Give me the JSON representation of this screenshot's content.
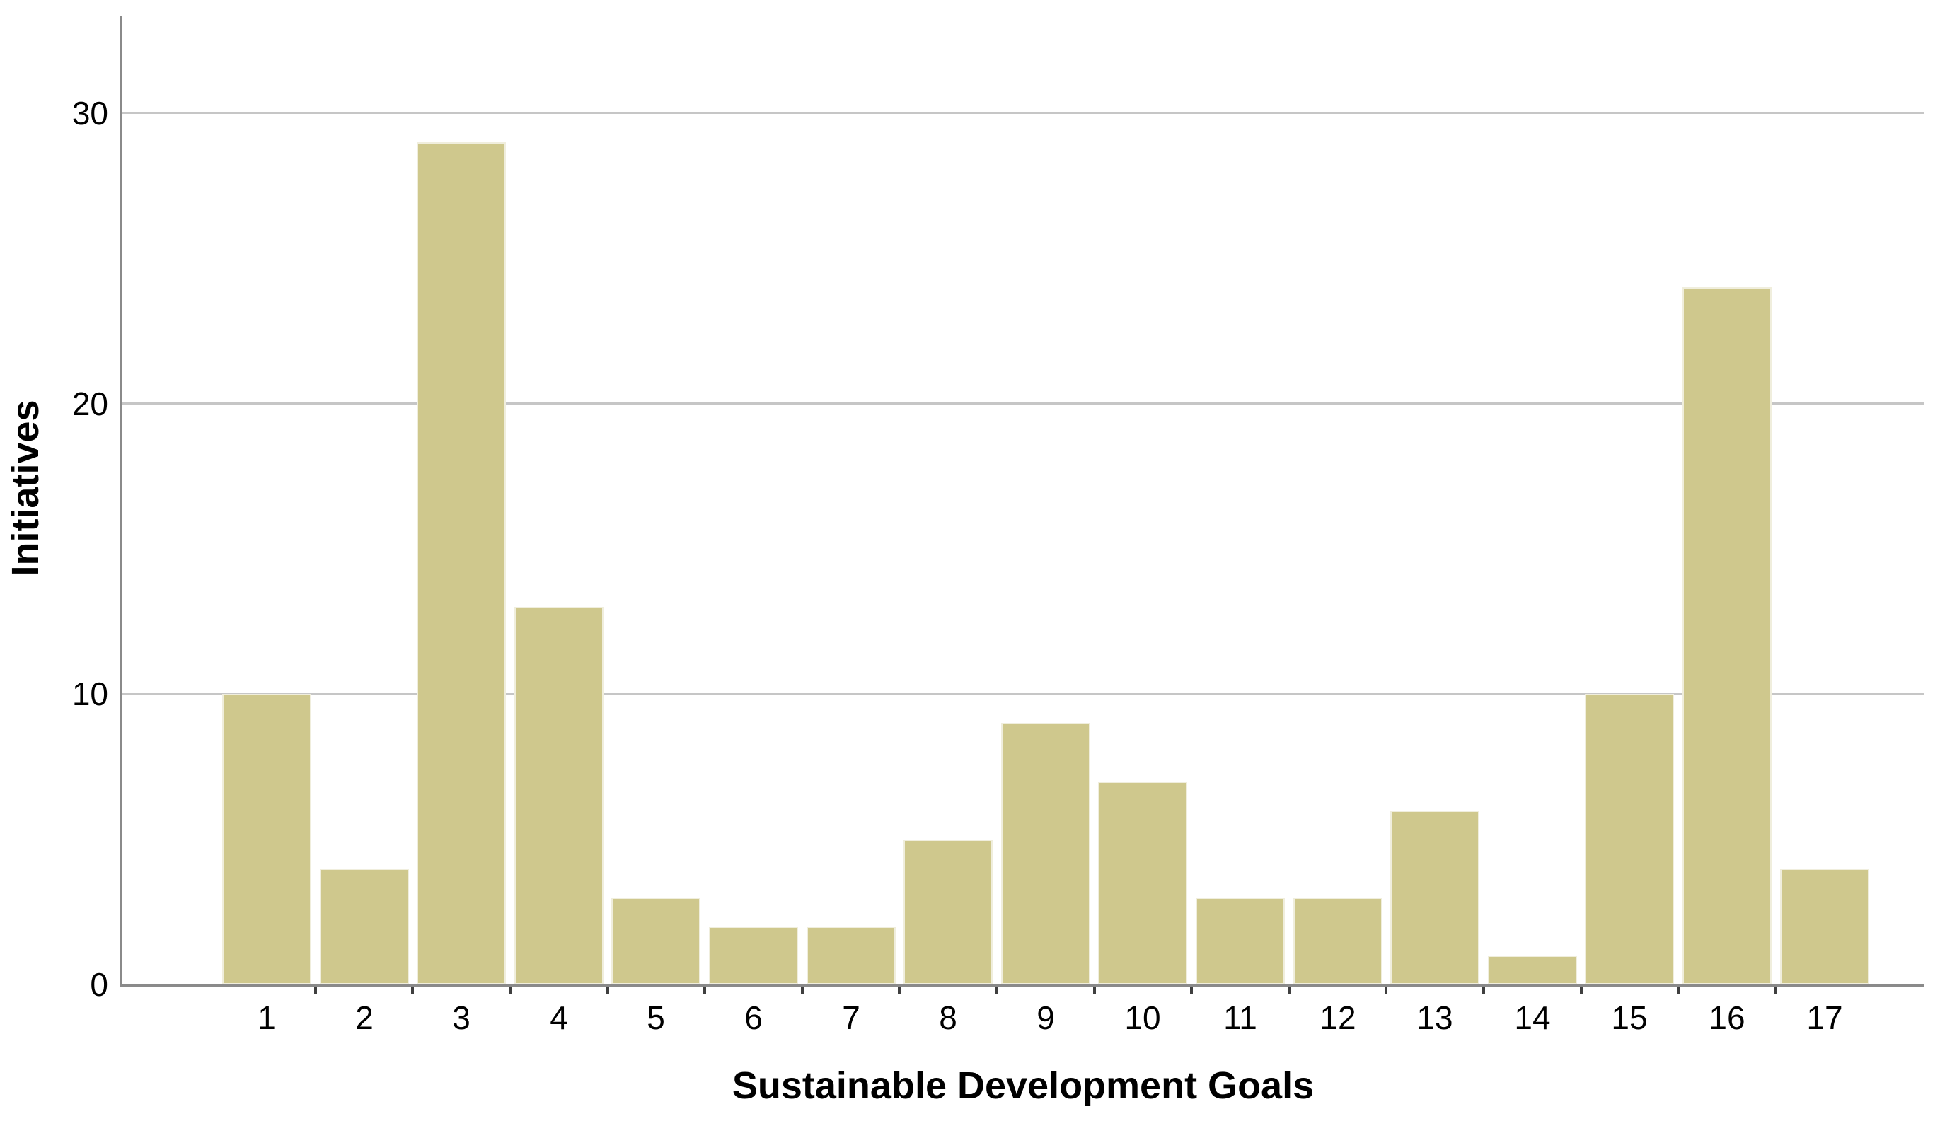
{
  "chart_data": {
    "type": "bar",
    "title": "",
    "xlabel": "Sustainable Development Goals",
    "ylabel": "Initiatives",
    "categories": [
      "1",
      "2",
      "3",
      "4",
      "5",
      "6",
      "7",
      "8",
      "9",
      "10",
      "11",
      "12",
      "13",
      "14",
      "15",
      "16",
      "17"
    ],
    "values": [
      10,
      4,
      29,
      13,
      3,
      2,
      2,
      5,
      9,
      7,
      3,
      3,
      6,
      1,
      10,
      24,
      4
    ],
    "yticks": [
      0,
      10,
      20,
      30
    ],
    "ylim": [
      0,
      33
    ],
    "grid": "horizontal",
    "legend": "none",
    "colors": {
      "bar_fill": "#cfc88d",
      "bar_border": "#f0eedd",
      "gridline": "#c6c6c6",
      "axis_line": "#8a8a8a",
      "tick_mark": "#3f3f3f",
      "text": "#000000",
      "background": "#ffffff"
    }
  }
}
